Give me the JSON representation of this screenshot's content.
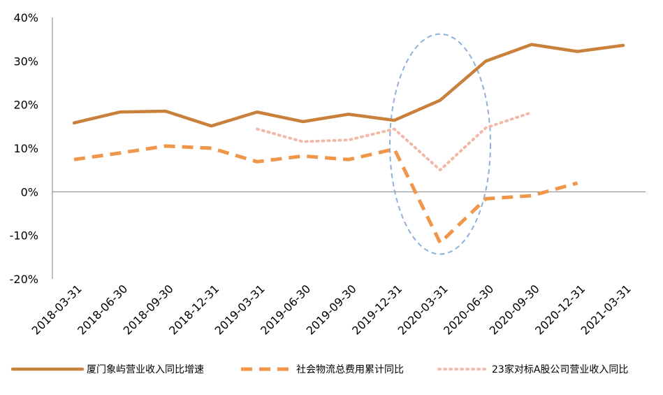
{
  "chart_data": {
    "type": "line",
    "categories": [
      "2018-03-31",
      "2018-06-30",
      "2018-09-30",
      "2018-12-31",
      "2019-03-31",
      "2019-06-30",
      "2019-09-30",
      "2019-12-31",
      "2020-03-31",
      "2020-06-30",
      "2020-09-30",
      "2020-12-31",
      "2021-03-31"
    ],
    "yticks": [
      "40%",
      "30%",
      "20%",
      "10%",
      "0%",
      "-10%",
      "-20%"
    ],
    "ylim": [
      -20,
      40
    ],
    "grid": false,
    "legend_position": "bottom",
    "series": [
      {
        "name": "厦门象屿营业收入同比增速",
        "style": "solid",
        "color": "#C8803A",
        "values": [
          15.8,
          18.3,
          18.5,
          15.1,
          18.3,
          16.1,
          17.8,
          16.4,
          21.0,
          30.0,
          33.8,
          32.2,
          33.6
        ]
      },
      {
        "name": "社会物流总费用累计同比",
        "style": "dashed",
        "color": "#F0964A",
        "values": [
          7.4,
          8.9,
          10.5,
          10.0,
          6.9,
          8.2,
          7.4,
          9.8,
          -11.7,
          -1.6,
          -0.9,
          2.0,
          null
        ]
      },
      {
        "name": "23家对标A股公司营业收入同比",
        "style": "dotted",
        "color": "#F2B8A8",
        "values": [
          null,
          null,
          null,
          null,
          14.4,
          11.5,
          11.9,
          14.4,
          5.0,
          14.7,
          18.2,
          null,
          null
        ]
      }
    ],
    "annotation": {
      "shape": "ellipse",
      "style": "dashed",
      "color": "#8EB0DC",
      "x_center": "2020-03-31",
      "y_range": [
        -14.3,
        36.2
      ]
    }
  }
}
